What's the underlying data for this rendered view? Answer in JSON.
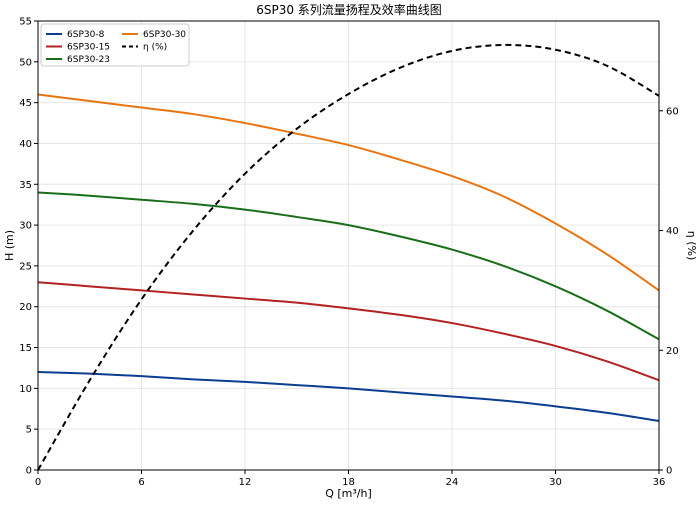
{
  "chart_data": {
    "type": "line",
    "title": "6SP30 系列流量扬程及效率曲线图",
    "xlabel": "Q [m³/h]",
    "ylabel": "H (m)",
    "y2label": "η (%)",
    "xlim": [
      0,
      36
    ],
    "ylim": [
      0,
      55
    ],
    "y2lim": [
      0,
      75
    ],
    "x_ticks": [
      0,
      6,
      12,
      18,
      24,
      30,
      36
    ],
    "y_ticks": [
      0,
      5,
      10,
      15,
      20,
      25,
      30,
      35,
      40,
      45,
      50,
      55
    ],
    "y2_ticks": [
      0,
      20,
      40,
      60
    ],
    "grid": true,
    "legend_position": "top-left",
    "x": [
      0,
      3,
      6,
      9,
      12,
      15,
      18,
      21,
      24,
      27,
      30,
      33,
      36
    ],
    "series": [
      {
        "name": "6SP30-8",
        "axis": "left",
        "color": "#0b3d91",
        "values": [
          12.0,
          11.8,
          11.5,
          11.1,
          10.8,
          10.4,
          10.0,
          9.5,
          9.0,
          8.5,
          7.8,
          7.0,
          6.0
        ]
      },
      {
        "name": "6SP30-15",
        "axis": "left",
        "color": "#b22222",
        "values": [
          23.0,
          22.5,
          22.0,
          21.5,
          21.0,
          20.5,
          19.8,
          19.0,
          18.0,
          16.7,
          15.2,
          13.3,
          11.0
        ]
      },
      {
        "name": "6SP30-23",
        "axis": "left",
        "color": "#1a6e1a",
        "values": [
          34.0,
          33.6,
          33.1,
          32.6,
          31.9,
          31.0,
          30.0,
          28.6,
          27.0,
          25.0,
          22.5,
          19.5,
          16.0
        ]
      },
      {
        "name": "6SP30-30",
        "axis": "left",
        "color": "#e87512",
        "values": [
          46.0,
          45.2,
          44.4,
          43.6,
          42.5,
          41.2,
          39.8,
          38.0,
          36.0,
          33.5,
          30.2,
          26.4,
          22.0
        ]
      },
      {
        "name": "η (%)",
        "axis": "right",
        "color": "#000000",
        "dash": true,
        "values": [
          0,
          15.0,
          28.5,
          40.0,
          49.5,
          57.0,
          62.8,
          67.2,
          70.0,
          71.0,
          70.2,
          67.5,
          62.5
        ]
      }
    ]
  }
}
